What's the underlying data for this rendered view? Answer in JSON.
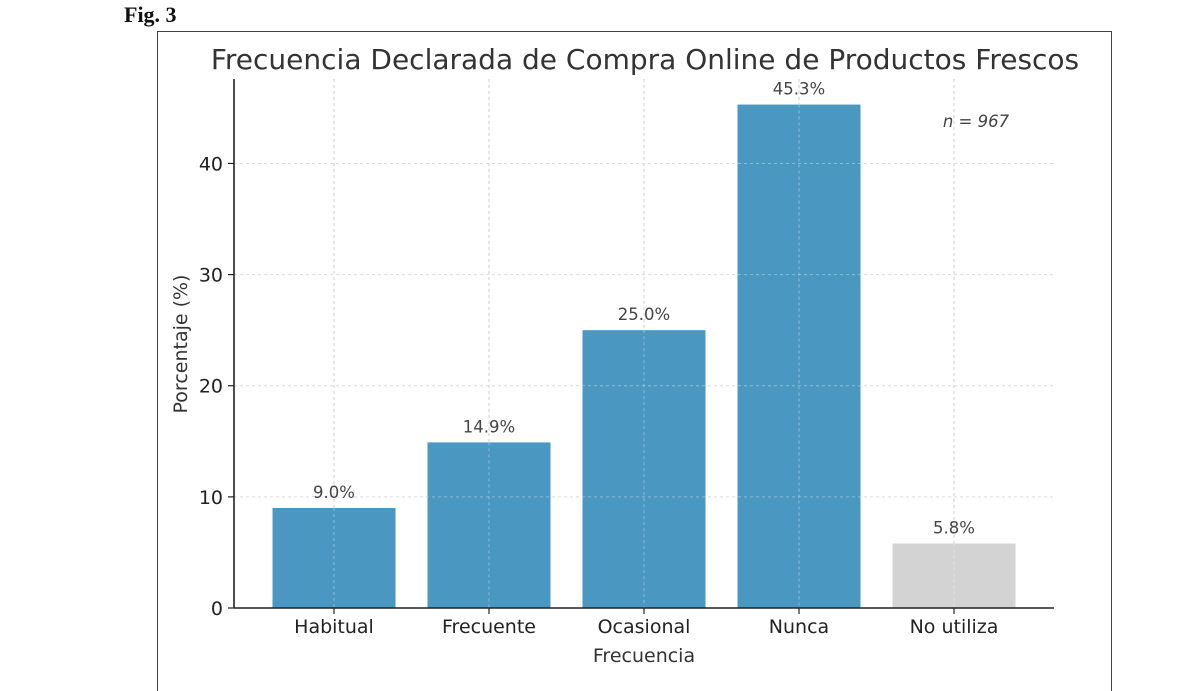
{
  "figure": {
    "label": "Fig. 3"
  },
  "chart_data": {
    "type": "bar",
    "title": "Frecuencia Declarada de Compra Online de Productos Frescos",
    "xlabel": "Frecuencia",
    "ylabel": "Porcentaje (%)",
    "categories": [
      "Habitual",
      "Frecuente",
      "Ocasional",
      "Nunca",
      "No utiliza"
    ],
    "values": [
      9.0,
      14.9,
      25.0,
      45.3,
      5.8
    ],
    "value_labels": [
      "9.0%",
      "14.9%",
      "25.0%",
      "45.3%",
      "5.8%"
    ],
    "bar_colors": [
      "#4a98c2",
      "#4a98c2",
      "#4a98c2",
      "#4a98c2",
      "#d3d3d3"
    ],
    "yticks": [
      0,
      10,
      20,
      30,
      40
    ],
    "ylim": [
      0,
      47.6
    ],
    "grid": true,
    "grid_style": "dashed",
    "annotation": "n = 967",
    "legend": null
  }
}
